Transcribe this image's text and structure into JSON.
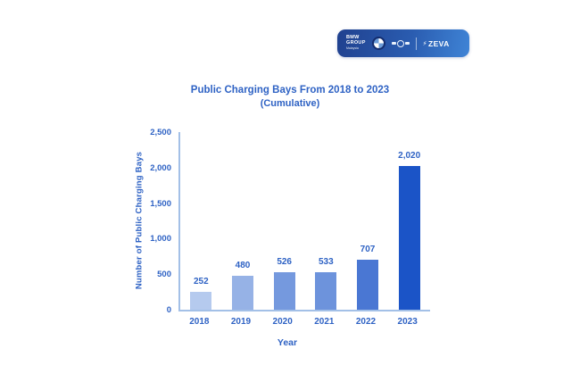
{
  "badge": {
    "brand_line1": "BMW",
    "brand_line2": "GROUP",
    "brand_line3": "Malaysia",
    "partner_brand": "ZEVA",
    "icons": [
      "bmw-roundel-icon",
      "mini-logo-icon",
      "lightning-icon"
    ],
    "colors": {
      "gradient_start": "#20418f",
      "gradient_end": "#3f84d6",
      "text": "#ffffff"
    }
  },
  "chart_data": {
    "type": "bar",
    "title": "Public Charging Bays From 2018 to 2023",
    "subtitle": "(Cumulative)",
    "xlabel": "Year",
    "ylabel": "Number of Public Charging Bays",
    "categories": [
      "2018",
      "2019",
      "2020",
      "2021",
      "2022",
      "2023"
    ],
    "values": [
      252,
      480,
      526,
      533,
      707,
      2020
    ],
    "value_labels": [
      "252",
      "480",
      "526",
      "533",
      "707",
      "2,020"
    ],
    "bar_colors": [
      "#b5caee",
      "#96b2e6",
      "#7599de",
      "#6d93dc",
      "#4a77d3",
      "#1b54c7"
    ],
    "ylim": [
      0,
      2500
    ],
    "yticks": [
      {
        "value": 0,
        "label": "0"
      },
      {
        "value": 500,
        "label": "500"
      },
      {
        "value": 1000,
        "label": "1,000"
      },
      {
        "value": 1500,
        "label": "1,500"
      },
      {
        "value": 2000,
        "label": "2,000"
      },
      {
        "value": 2500,
        "label": "2,500"
      }
    ],
    "grid": false,
    "legend": false,
    "text_color": "#2e62c4",
    "axis_color": "#a3c0e7"
  }
}
